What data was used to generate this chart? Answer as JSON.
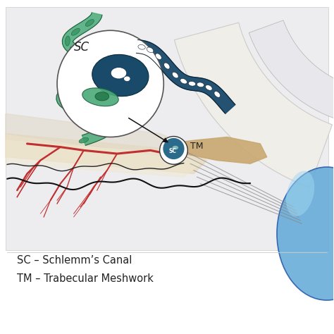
{
  "bg_color": "#f5f5f7",
  "panel_bg": "#ffffff",
  "illustration_bg": "#ededf0",
  "legend_line1": "SC – Schlemm’s Canal",
  "legend_line2": "TM – Trabecular Meshwork",
  "sc_label": "SC",
  "tm_label": "TM",
  "legend_fontsize": 10.5,
  "label_fontsize": 12,
  "title_color": "#222222",
  "colors": {
    "green_cell": "#4aaa78",
    "dark_teal": "#1a4a6a",
    "teal_canal": "#2a6a8a",
    "red_vessel": "#c03030",
    "tan_tissue": "#c8a870",
    "blue_eye": "#60a8d8",
    "cream_tissue": "#e8d8b8",
    "outline": "#333333",
    "white": "#ffffff",
    "light_gray": "#d8d8dc",
    "sclera_white": "#f0eee8",
    "tissue_light": "#e8e0d0"
  }
}
